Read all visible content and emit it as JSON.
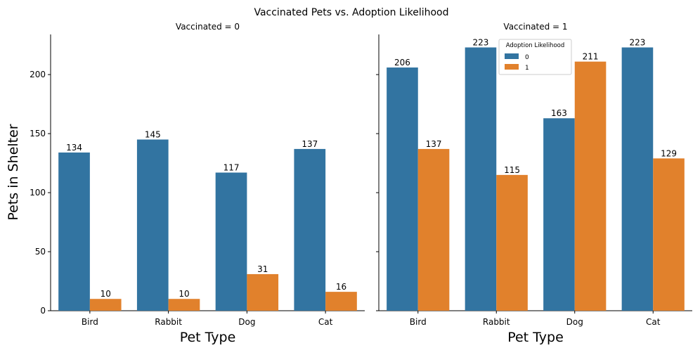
{
  "chart_data": {
    "type": "bar",
    "title": "Vaccinated Pets vs. Adoption Likelihood",
    "xlabel": "Pet Type",
    "ylabel": "Pets in Shelter",
    "ylim": [
      0,
      234
    ],
    "yticks": [
      0,
      50,
      100,
      150,
      200
    ],
    "categories": [
      "Bird",
      "Rabbit",
      "Dog",
      "Cat"
    ],
    "legend": {
      "title": "Adoption Likelihood",
      "placement": "top-center",
      "entries": [
        "0",
        "1"
      ]
    },
    "colors": {
      "0": "#3274a1",
      "1": "#e1812c"
    },
    "grid": false,
    "panels": [
      {
        "title": "Vaccinated = 0",
        "series": [
          {
            "name": "0",
            "values": [
              134,
              145,
              117,
              137
            ]
          },
          {
            "name": "1",
            "values": [
              10,
              10,
              31,
              16
            ]
          }
        ]
      },
      {
        "title": "Vaccinated = 1",
        "series": [
          {
            "name": "0",
            "values": [
              206,
              223,
              163,
              223
            ]
          },
          {
            "name": "1",
            "values": [
              137,
              115,
              211,
              129
            ]
          }
        ]
      }
    ]
  }
}
